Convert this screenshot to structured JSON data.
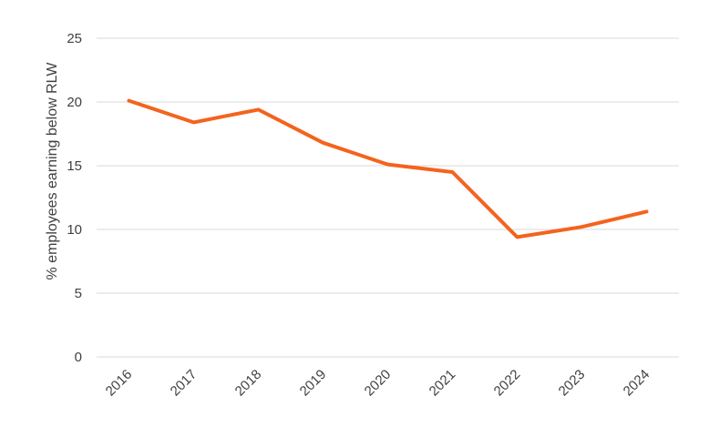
{
  "chart_data": {
    "type": "line",
    "title": "",
    "xlabel": "",
    "ylabel": "% employees earning below RLW",
    "ylim": [
      0,
      25
    ],
    "yticks": [
      0,
      5,
      10,
      15,
      20,
      25
    ],
    "grid": true,
    "legend": null,
    "categories": [
      "2016",
      "2017",
      "2018",
      "2019",
      "2020",
      "2021",
      "2022",
      "2023",
      "2024"
    ],
    "series": [
      {
        "name": "% employees earning below RLW",
        "color": "#F4631E",
        "values": [
          20.1,
          18.4,
          19.4,
          16.8,
          15.1,
          14.5,
          9.4,
          10.2,
          11.4
        ]
      }
    ]
  },
  "colors": {
    "line": "#F4631E",
    "grid": "#D9D9D9",
    "text": "#404040"
  }
}
